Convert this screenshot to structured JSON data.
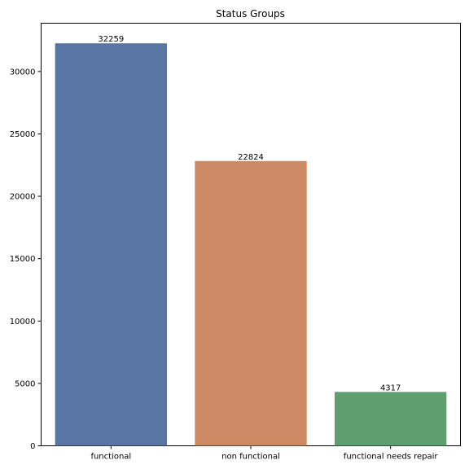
{
  "chart_data": {
    "type": "bar",
    "title": "Status Groups",
    "xlabel": "",
    "ylabel": "",
    "categories": [
      "functional",
      "non functional",
      "functional needs repair"
    ],
    "values": [
      32259,
      22824,
      4317
    ],
    "data_labels": [
      "32259",
      "22824",
      "4317"
    ],
    "colors": [
      "#5875a4",
      "#cc8963",
      "#5f9e6e"
    ],
    "ylim": [
      0,
      33872
    ],
    "yticks": [
      0,
      5000,
      10000,
      15000,
      20000,
      25000,
      30000
    ],
    "ytick_labels": [
      "0",
      "5000",
      "10000",
      "15000",
      "20000",
      "25000",
      "30000"
    ],
    "grid": false,
    "legend": "none"
  }
}
